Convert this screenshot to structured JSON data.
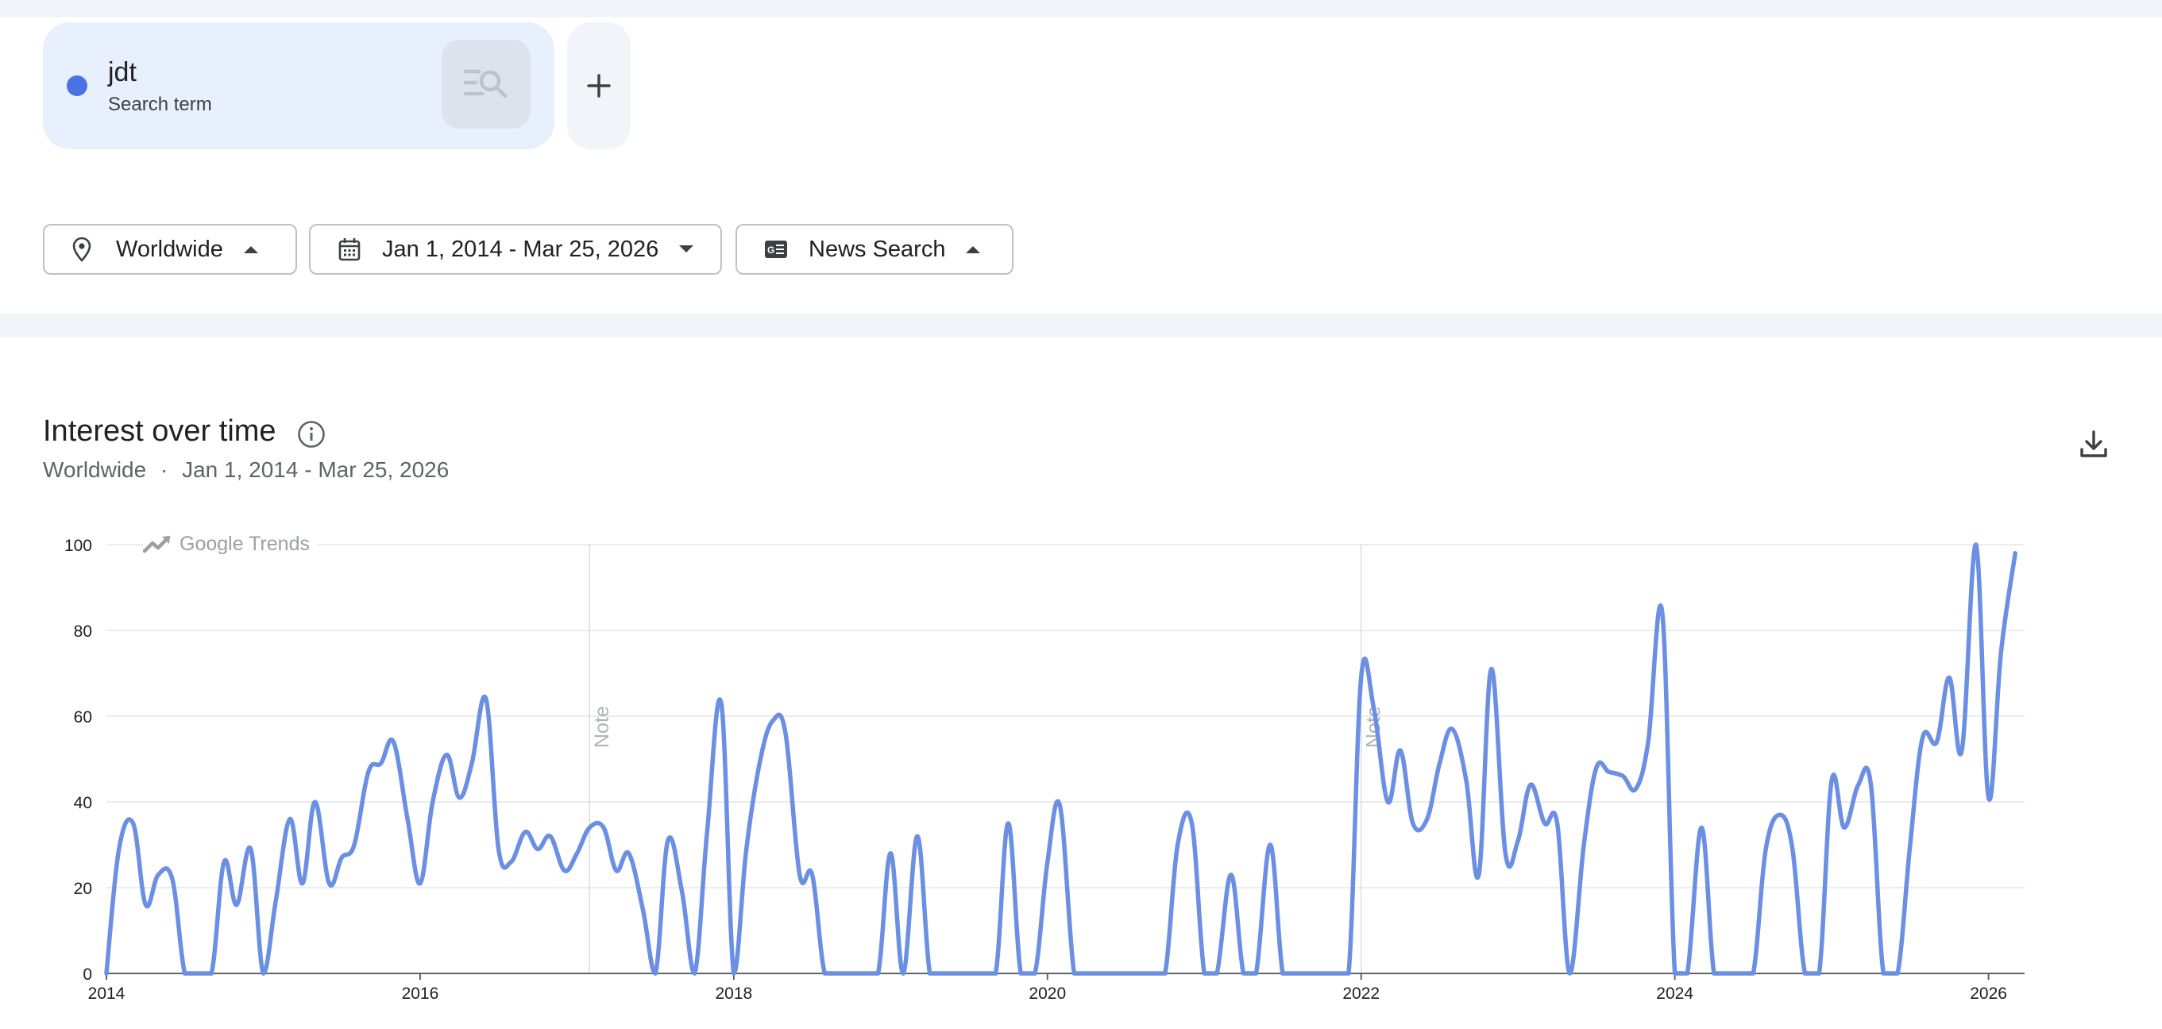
{
  "search_term": {
    "name": "jdt",
    "type": "Search term",
    "color": "#4a72e2"
  },
  "filters": {
    "location": "Worldwide",
    "date_range": "Jan 1, 2014 - Mar 25, 2026",
    "source": "News Search"
  },
  "section": {
    "title": "Interest over time",
    "subtitle_location": "Worldwide",
    "subtitle_separator": "·",
    "subtitle_date": "Jan 1, 2014 - Mar 25, 2026"
  },
  "watermark": "Google Trends",
  "chart_data": {
    "type": "line",
    "title": "Interest over time",
    "xlabel": "",
    "ylabel": "",
    "xlim": [
      2014.0,
      2026.23
    ],
    "ylim": [
      0,
      100
    ],
    "y_ticks": [
      0,
      20,
      40,
      60,
      80,
      100
    ],
    "x_ticks": [
      2014,
      2016,
      2018,
      2020,
      2022,
      2024,
      2026
    ],
    "x_tick_labels": [
      "2014",
      "2016",
      "2018",
      "2020",
      "2022",
      "2024",
      "2026"
    ],
    "grid": true,
    "line_color": "#6a8fe3",
    "notes": [
      {
        "x": 2017.08,
        "label": "Note"
      },
      {
        "x": 2022.0,
        "label": "Note"
      }
    ],
    "series": [
      {
        "name": "jdt",
        "x": [
          2014.0,
          2014.08,
          2014.17,
          2014.25,
          2014.33,
          2014.42,
          2014.5,
          2014.58,
          2014.67,
          2014.75,
          2014.83,
          2014.92,
          2015.0,
          2015.08,
          2015.17,
          2015.25,
          2015.33,
          2015.42,
          2015.5,
          2015.58,
          2015.67,
          2015.75,
          2015.83,
          2015.92,
          2016.0,
          2016.08,
          2016.17,
          2016.25,
          2016.33,
          2016.42,
          2016.5,
          2016.58,
          2016.67,
          2016.75,
          2016.83,
          2016.92,
          2017.0,
          2017.08,
          2017.17,
          2017.25,
          2017.33,
          2017.42,
          2017.5,
          2017.58,
          2017.67,
          2017.75,
          2017.83,
          2017.92,
          2018.0,
          2018.08,
          2018.17,
          2018.25,
          2018.33,
          2018.42,
          2018.5,
          2018.58,
          2018.67,
          2018.75,
          2018.83,
          2018.92,
          2019.0,
          2019.08,
          2019.17,
          2019.25,
          2019.33,
          2019.42,
          2019.5,
          2019.58,
          2019.67,
          2019.75,
          2019.83,
          2019.92,
          2020.0,
          2020.08,
          2020.17,
          2020.25,
          2020.33,
          2020.42,
          2020.5,
          2020.58,
          2020.67,
          2020.75,
          2020.83,
          2020.92,
          2021.0,
          2021.08,
          2021.17,
          2021.25,
          2021.33,
          2021.42,
          2021.5,
          2021.58,
          2021.67,
          2021.75,
          2021.83,
          2021.92,
          2022.0,
          2022.08,
          2022.17,
          2022.25,
          2022.33,
          2022.42,
          2022.5,
          2022.58,
          2022.67,
          2022.75,
          2022.83,
          2022.92,
          2023.0,
          2023.08,
          2023.17,
          2023.25,
          2023.33,
          2023.42,
          2023.5,
          2023.58,
          2023.67,
          2023.75,
          2023.83,
          2023.92,
          2024.0,
          2024.08,
          2024.17,
          2024.25,
          2024.33,
          2024.42,
          2024.5,
          2024.58,
          2024.67,
          2024.75,
          2024.83,
          2024.92,
          2025.0,
          2025.08,
          2025.17,
          2025.25,
          2025.33,
          2025.42,
          2025.5,
          2025.58,
          2025.67,
          2025.75,
          2025.83,
          2025.92,
          2026.0,
          2026.08,
          2026.17
        ],
        "values": [
          0,
          29,
          35,
          16,
          23,
          22,
          0,
          0,
          0,
          26,
          16,
          29,
          0,
          17,
          36,
          21,
          40,
          21,
          27,
          30,
          47,
          49,
          54,
          36,
          21,
          40,
          51,
          41,
          49,
          64,
          29,
          26,
          33,
          29,
          32,
          24,
          28,
          34,
          34,
          24,
          28,
          15,
          0,
          31,
          19,
          0,
          33,
          63,
          0,
          29,
          50,
          59,
          56,
          23,
          23,
          0,
          0,
          0,
          0,
          0,
          28,
          0,
          32,
          0,
          0,
          0,
          0,
          0,
          0,
          35,
          0,
          0,
          26,
          39,
          0,
          0,
          0,
          0,
          0,
          0,
          0,
          0,
          30,
          35,
          0,
          0,
          23,
          0,
          0,
          30,
          0,
          0,
          0,
          0,
          0,
          0,
          69,
          62,
          40,
          52,
          35,
          36,
          49,
          57,
          45,
          23,
          71,
          28,
          31,
          44,
          35,
          35,
          0,
          30,
          48,
          47,
          46,
          43,
          54,
          84,
          0,
          0,
          34,
          0,
          0,
          0,
          0,
          29,
          37,
          29,
          0,
          0,
          45,
          34,
          44,
          44,
          0,
          0,
          30,
          55,
          54,
          69,
          52,
          100,
          41,
          75,
          98
        ]
      }
    ]
  }
}
